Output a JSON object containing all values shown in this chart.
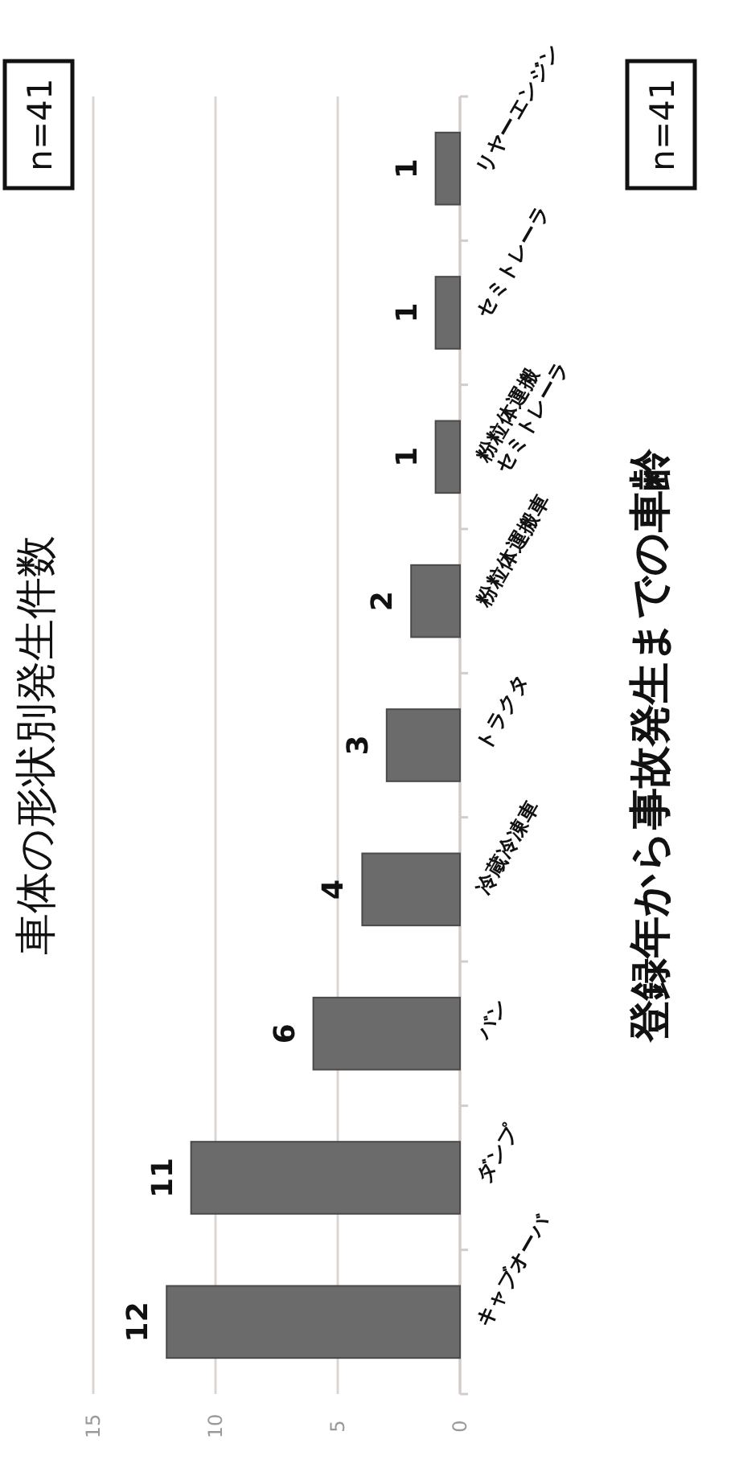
{
  "chart_data": [
    {
      "type": "bar",
      "orientation": "horizontal",
      "title": "車体の形状別発生件数",
      "categories": [
        "リヤーエンジン",
        "セミトレーラ",
        "粉粒体運搬セミトレーラ",
        "粉粒体運搬車",
        "トラクタ",
        "冷蔵冷凍車",
        "バン",
        "ダンプ",
        "キャブオーバ"
      ],
      "values": [
        1,
        1,
        1,
        2,
        3,
        4,
        6,
        11,
        12
      ],
      "color": "#6b6b6b",
      "xlim": [
        15,
        0
      ],
      "xticks": [
        15,
        10,
        5,
        0
      ],
      "grid": "x",
      "data_labels": true,
      "annotations": [
        "n=41"
      ]
    },
    {
      "type": "other",
      "title": "登録年から事故発生までの車齢",
      "annotations": [
        "n=41"
      ]
    }
  ]
}
